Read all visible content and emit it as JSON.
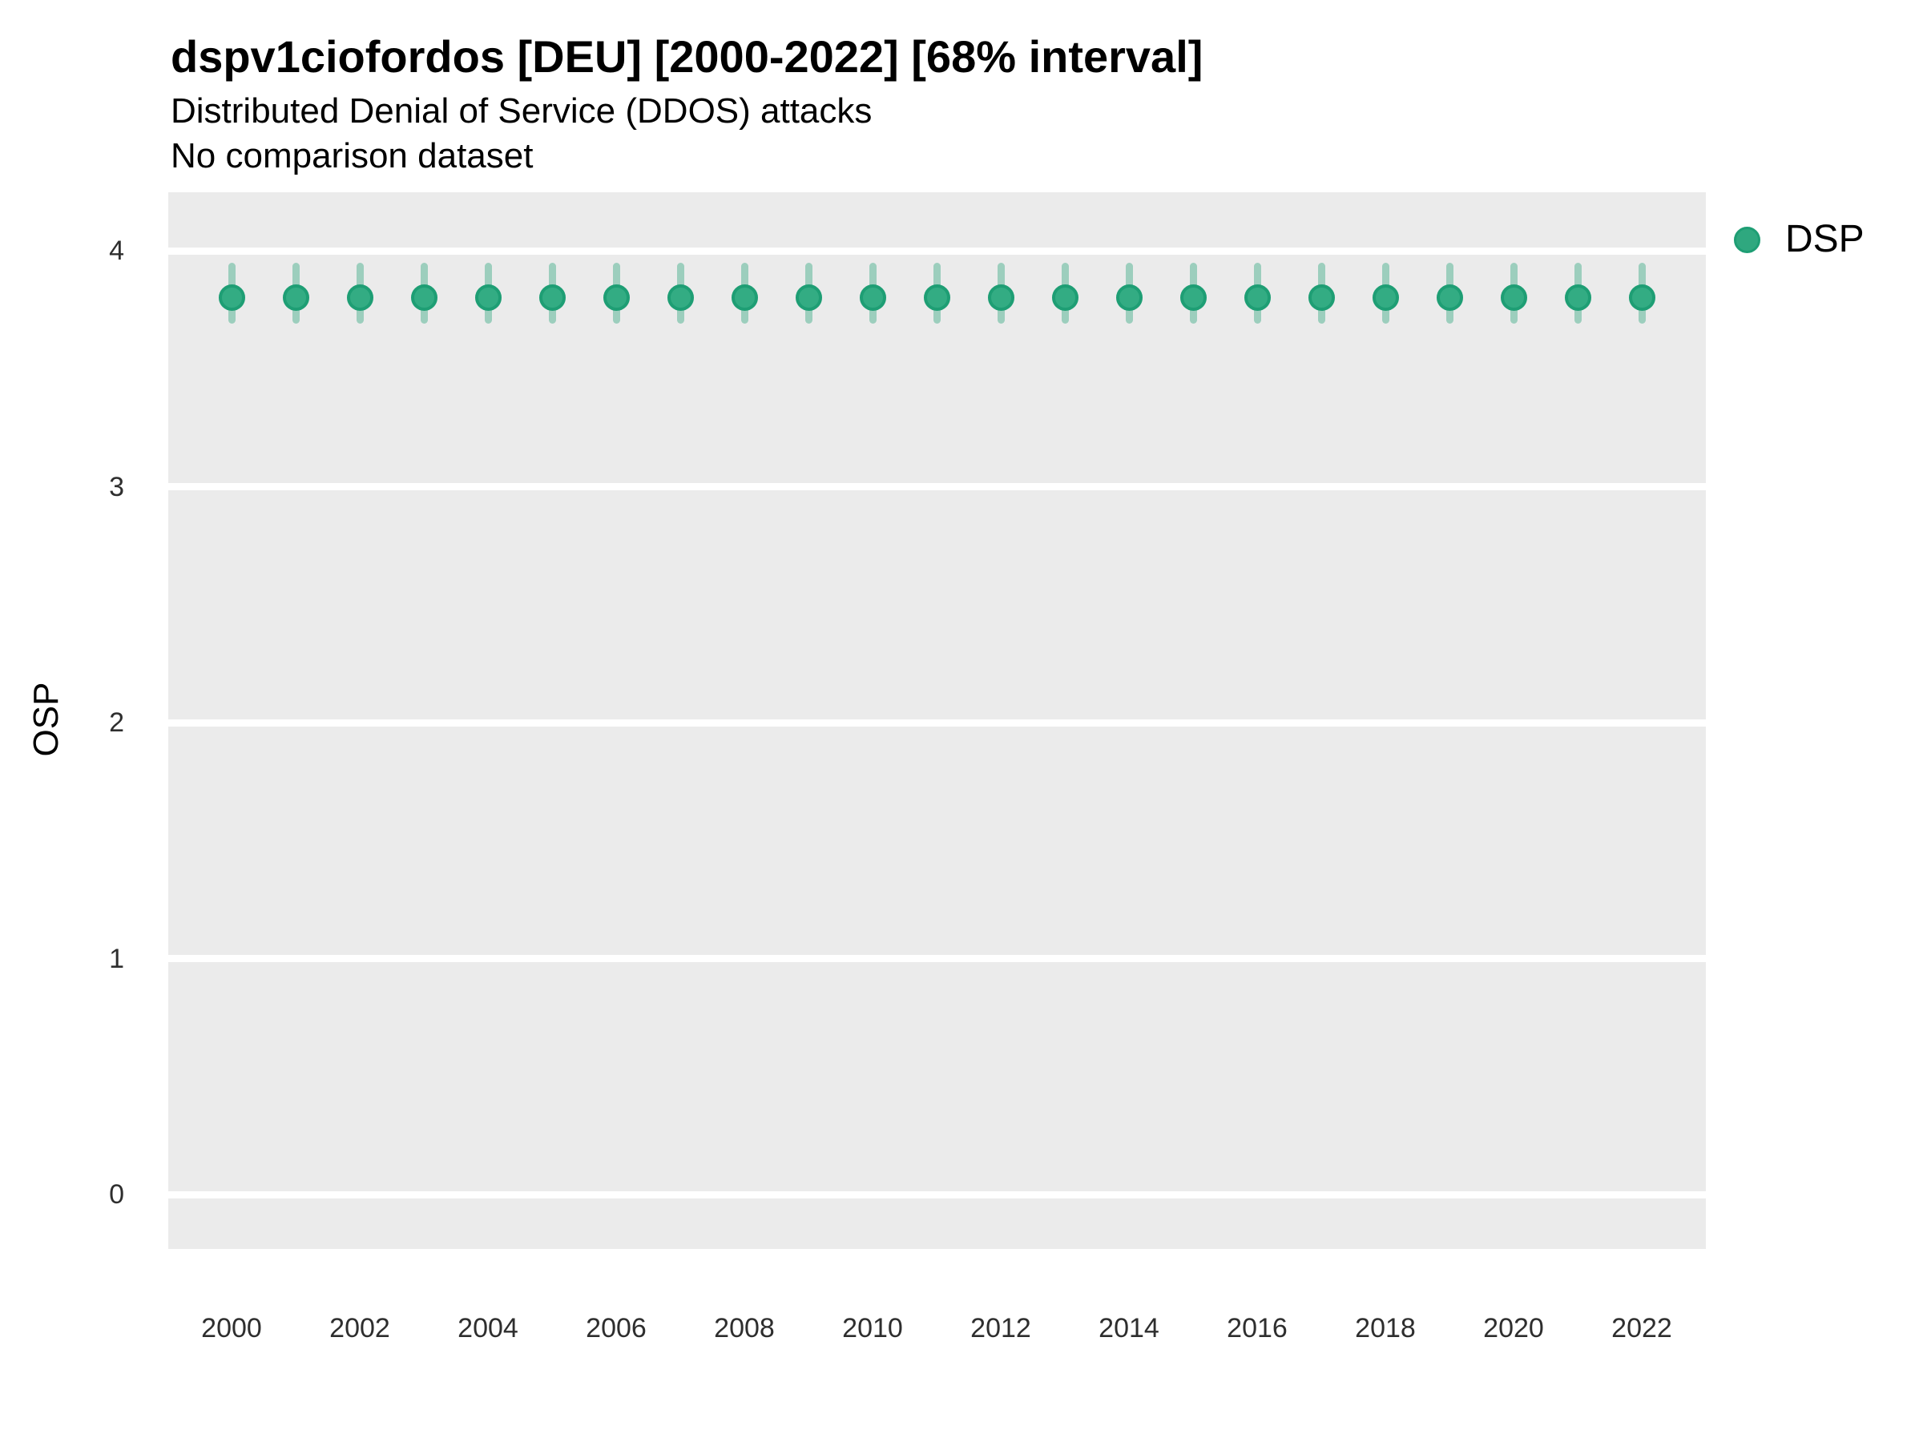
{
  "header": {
    "title": "dspv1ciofordos [DEU] [2000-2022] [68% interval]",
    "subtitle": "Distributed Denial of Service (DDOS) attacks",
    "note": "No comparison dataset"
  },
  "legend": {
    "label": "DSP",
    "marker_color": "#2FA87F",
    "position": "right"
  },
  "colors": {
    "point_fill": "#33AC83",
    "point_border": "#1E9E74",
    "interval_bar": "rgba(47,168,127,0.42)",
    "panel_background": "#EBEBEB",
    "gridline": "#FFFFFF",
    "tick_text": "#2e2e2e"
  },
  "chart_data": {
    "type": "scatter",
    "title": "dspv1ciofordos [DEU] [2000-2022] [68% interval]",
    "subtitle": "Distributed Denial of Service (DDOS) attacks",
    "annotation": "No comparison dataset",
    "xlabel": "",
    "ylabel": "OSP",
    "interval": "68%",
    "grid": "horizontal-major-only",
    "legend_position": "right",
    "ylim": [
      0,
      4
    ],
    "yticks": [
      0,
      1,
      2,
      3,
      4
    ],
    "xticks": [
      2000,
      2002,
      2004,
      2006,
      2008,
      2010,
      2012,
      2014,
      2016,
      2018,
      2020,
      2022
    ],
    "x": [
      2000,
      2001,
      2002,
      2003,
      2004,
      2005,
      2006,
      2007,
      2008,
      2009,
      2010,
      2011,
      2012,
      2013,
      2014,
      2015,
      2016,
      2017,
      2018,
      2019,
      2020,
      2021,
      2022
    ],
    "series": [
      {
        "name": "DSP",
        "values": [
          3.8,
          3.8,
          3.8,
          3.8,
          3.8,
          3.8,
          3.8,
          3.8,
          3.8,
          3.8,
          3.8,
          3.8,
          3.8,
          3.8,
          3.8,
          3.8,
          3.8,
          3.8,
          3.8,
          3.8,
          3.8,
          3.8,
          3.8
        ],
        "interval_low": [
          3.69,
          3.69,
          3.69,
          3.69,
          3.69,
          3.69,
          3.69,
          3.69,
          3.69,
          3.69,
          3.69,
          3.69,
          3.69,
          3.69,
          3.69,
          3.69,
          3.69,
          3.69,
          3.69,
          3.69,
          3.69,
          3.69,
          3.69
        ],
        "interval_high": [
          3.95,
          3.95,
          3.95,
          3.95,
          3.95,
          3.95,
          3.95,
          3.95,
          3.95,
          3.95,
          3.95,
          3.95,
          3.95,
          3.95,
          3.95,
          3.95,
          3.95,
          3.95,
          3.95,
          3.95,
          3.95,
          3.95,
          3.95
        ]
      }
    ]
  }
}
